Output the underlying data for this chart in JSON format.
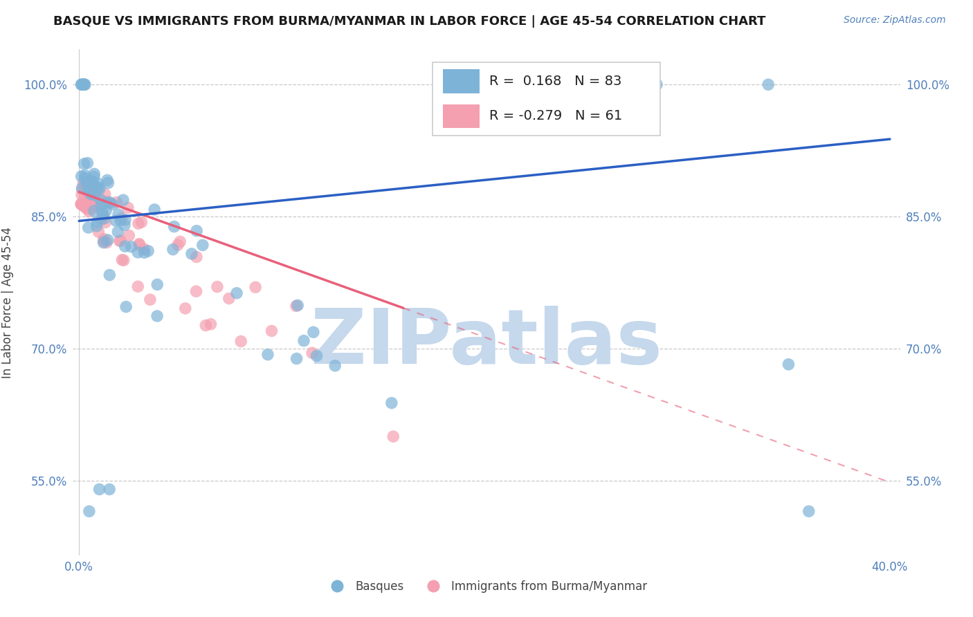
{
  "title": "BASQUE VS IMMIGRANTS FROM BURMA/MYANMAR IN LABOR FORCE | AGE 45-54 CORRELATION CHART",
  "source": "Source: ZipAtlas.com",
  "ylabel": "In Labor Force | Age 45-54",
  "xlim": [
    -0.003,
    0.405
  ],
  "ylim": [
    0.465,
    1.04
  ],
  "xticks": [
    0.0,
    0.05,
    0.1,
    0.15,
    0.2,
    0.25,
    0.3,
    0.35,
    0.4
  ],
  "yticks": [
    0.55,
    0.7,
    0.85,
    1.0
  ],
  "yticklabels": [
    "55.0%",
    "70.0%",
    "85.0%",
    "100.0%"
  ],
  "blue_color": "#7EB3D8",
  "pink_color": "#F4A0B0",
  "blue_line_color": "#2B5FC4",
  "pink_line_color": "#E8607A",
  "R_blue": 0.168,
  "N_blue": 83,
  "R_pink": -0.279,
  "N_pink": 61,
  "watermark": "ZIPatlas",
  "watermark_color": "#C5D8EC",
  "legend_label_blue": "Basques",
  "legend_label_pink": "Immigrants from Burma/Myanmar",
  "blue_line_x0": 0.0,
  "blue_line_x1": 0.4,
  "blue_line_y0": 0.845,
  "blue_line_y1": 0.938,
  "pink_line_x0": 0.0,
  "pink_line_x1": 0.4,
  "pink_line_y0": 0.878,
  "pink_line_y1": 0.548
}
